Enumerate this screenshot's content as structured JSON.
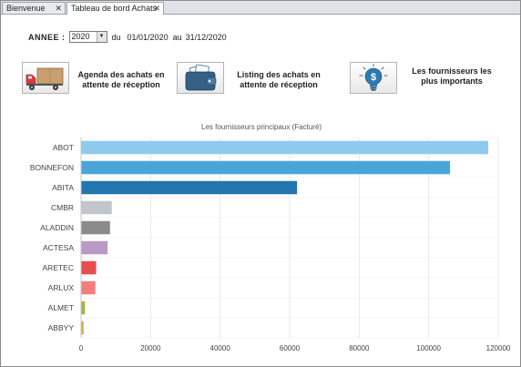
{
  "tabs": [
    {
      "label": "Bienvenue",
      "close": "✕"
    },
    {
      "label": "Tableau de bord Achats",
      "close": "✕"
    }
  ],
  "filters": {
    "year_label": "ANNEE :",
    "year_value": "2020",
    "du": "du",
    "date_from": "01/01/2020",
    "au": "au",
    "date_to": "31/12/2020"
  },
  "actions": [
    {
      "label_line1": "Agenda des achats en",
      "label_line2": "attente de réception",
      "icon": "delivery-truck-icon"
    },
    {
      "label_line1": "Listing des achats en",
      "label_line2": "attente de réception",
      "icon": "wallet-icon"
    },
    {
      "label_line1": "Les fournisseurs les",
      "label_line2": "plus importants",
      "icon": "lightbulb-dollar-icon"
    }
  ],
  "colors": {
    "accent": "#2f79b1",
    "bar_colors": [
      "#8ecaee",
      "#4aa6d9",
      "#2276ad",
      "#c2c5ca",
      "#8a8a8a",
      "#b99ac6",
      "#e84d4d",
      "#f08080",
      "#a8b24a",
      "#c9b24a"
    ]
  },
  "chart_data": {
    "type": "bar",
    "orientation": "horizontal",
    "title": "Les fournisseurs principaux (Facturé)",
    "categories": [
      "ABOT",
      "BONNEFON",
      "ABITA",
      "CMBR",
      "ALADDIN",
      "ACTESA",
      "ARETEC",
      "ARLUX",
      "ALMET",
      "ABBYY"
    ],
    "values": [
      117000,
      106000,
      62000,
      8700,
      8200,
      7500,
      4200,
      4000,
      1000,
      600
    ],
    "xlim": [
      0,
      120000
    ],
    "xticks": [
      "0",
      "20000",
      "40000",
      "60000",
      "80000",
      "100000",
      "120000"
    ],
    "grid": true,
    "legend": "none"
  }
}
